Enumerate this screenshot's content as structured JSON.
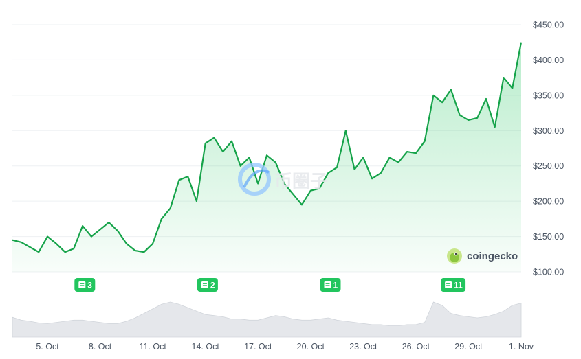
{
  "chart_data": {
    "type": "area",
    "title": "",
    "xlabel": "",
    "ylabel": "",
    "grid": true,
    "y_axis_position": "right",
    "ylim": [
      100,
      450
    ],
    "yticks": [
      100,
      150,
      200,
      250,
      300,
      350,
      400,
      450
    ],
    "ytick_labels": [
      "$100.00",
      "$150.00",
      "$200.00",
      "$250.00",
      "$300.00",
      "$350.00",
      "$400.00",
      "$450.00"
    ],
    "xlim": [
      "2024-10-03",
      "2024-11-01"
    ],
    "xtick_labels": [
      "5. Oct",
      "8. Oct",
      "11. Oct",
      "14. Oct",
      "17. Oct",
      "20. Oct",
      "23. Oct",
      "26. Oct",
      "29. Oct",
      "1. Nov"
    ],
    "xtick_dates": [
      "2024-10-05",
      "2024-10-08",
      "2024-10-11",
      "2024-10-14",
      "2024-10-17",
      "2024-10-20",
      "2024-10-23",
      "2024-10-26",
      "2024-10-29",
      "2024-11-01"
    ],
    "series": [
      {
        "color": "#16a34a",
        "x": [
          "2024-10-03",
          "2024-10-03T12",
          "2024-10-04",
          "2024-10-04T12",
          "2024-10-05",
          "2024-10-05T12",
          "2024-10-06",
          "2024-10-06T12",
          "2024-10-07",
          "2024-10-07T12",
          "2024-10-08",
          "2024-10-08T12",
          "2024-10-09",
          "2024-10-09T12",
          "2024-10-10",
          "2024-10-10T12",
          "2024-10-11",
          "2024-10-11T12",
          "2024-10-12",
          "2024-10-12T12",
          "2024-10-13",
          "2024-10-13T12",
          "2024-10-14",
          "2024-10-14T12",
          "2024-10-15",
          "2024-10-15T12",
          "2024-10-16",
          "2024-10-16T12",
          "2024-10-17",
          "2024-10-17T12",
          "2024-10-18",
          "2024-10-18T12",
          "2024-10-19",
          "2024-10-19T12",
          "2024-10-20",
          "2024-10-20T12",
          "2024-10-21",
          "2024-10-21T12",
          "2024-10-22",
          "2024-10-22T12",
          "2024-10-23",
          "2024-10-23T12",
          "2024-10-24",
          "2024-10-24T12",
          "2024-10-25",
          "2024-10-25T12",
          "2024-10-26",
          "2024-10-26T12",
          "2024-10-27",
          "2024-10-27T12",
          "2024-10-28",
          "2024-10-28T12",
          "2024-10-29",
          "2024-10-29T12",
          "2024-10-30",
          "2024-10-30T12",
          "2024-10-31",
          "2024-10-31T12",
          "2024-11-01"
        ],
        "values": [
          145,
          142,
          135,
          128,
          150,
          140,
          128,
          133,
          165,
          150,
          160,
          170,
          158,
          140,
          130,
          128,
          140,
          175,
          190,
          230,
          235,
          200,
          282,
          290,
          270,
          285,
          250,
          262,
          225,
          265,
          255,
          225,
          210,
          195,
          215,
          218,
          240,
          248,
          300,
          245,
          262,
          232,
          240,
          262,
          255,
          270,
          268,
          285,
          350,
          340,
          358,
          322,
          315,
          318,
          345,
          305,
          375,
          360,
          425
        ]
      }
    ],
    "annotations": [
      {
        "text": "3",
        "x": "2024-10-07T03"
      },
      {
        "text": "2",
        "x": "2024-10-14T03"
      },
      {
        "text": "1",
        "x": "2024-10-21T03"
      },
      {
        "text": "11",
        "x": "2024-10-28T03"
      }
    ],
    "volume_series": {
      "color": "#e5e7eb",
      "values": [
        35,
        30,
        28,
        25,
        24,
        26,
        28,
        30,
        30,
        28,
        26,
        24,
        24,
        28,
        34,
        42,
        50,
        58,
        62,
        58,
        52,
        46,
        40,
        38,
        36,
        32,
        32,
        30,
        30,
        34,
        38,
        36,
        32,
        30,
        30,
        32,
        34,
        30,
        28,
        26,
        24,
        22,
        22,
        20,
        20,
        22,
        22,
        26,
        62,
        56,
        42,
        38,
        36,
        34,
        36,
        40,
        46,
        56,
        60
      ]
    }
  },
  "watermark": {
    "text": "币圈子"
  },
  "branding": {
    "text": "coingecko"
  }
}
